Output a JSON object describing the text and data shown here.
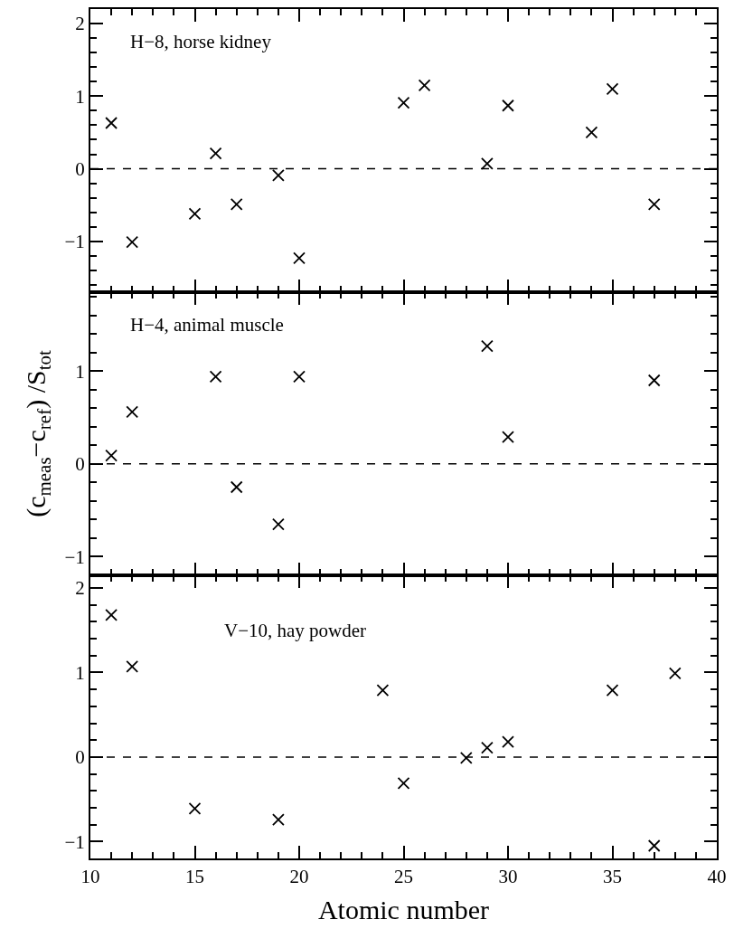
{
  "chart_data": [
    {
      "type": "scatter",
      "annotations": [
        "H−8, horse kidney"
      ],
      "x": [
        11,
        12,
        15,
        16,
        17,
        19,
        20,
        25,
        26,
        29,
        30,
        34,
        35,
        37
      ],
      "values": [
        0.63,
        -1.01,
        -0.62,
        0.21,
        -0.49,
        -0.09,
        -1.23,
        0.91,
        1.15,
        0.07,
        0.87,
        0.5,
        1.1,
        -0.49
      ],
      "xlim": [
        10,
        40
      ],
      "xticks": [
        10,
        15,
        20,
        25,
        30,
        35,
        40
      ],
      "ylim": [
        -1.7,
        2.2
      ],
      "yticks": [
        -1,
        0,
        1,
        2
      ],
      "tick_labels": "y",
      "marker": "cross",
      "color": "#000000",
      "ref_lines": [
        {
          "axis": "y",
          "value": 0,
          "line_style": "dashed"
        }
      ]
    },
    {
      "type": "scatter",
      "annotations": [
        "H−4, animal muscle"
      ],
      "ylabel": "(c$_{meas}$−c$_{ref}$) /S$_{tot}$",
      "x": [
        11,
        12,
        16,
        17,
        19,
        20,
        29,
        30,
        37
      ],
      "values": [
        0.09,
        0.56,
        0.94,
        -0.25,
        -0.65,
        0.94,
        1.27,
        0.29,
        0.9
      ],
      "xlim": [
        10,
        40
      ],
      "xticks": [
        10,
        15,
        20,
        25,
        30,
        35,
        40
      ],
      "ylim": [
        -1.2,
        1.85
      ],
      "yticks": [
        -1,
        0,
        1
      ],
      "tick_labels": "y",
      "marker": "cross",
      "color": "#000000",
      "ref_lines": [
        {
          "axis": "y",
          "value": 0,
          "line_style": "dashed"
        }
      ]
    },
    {
      "type": "scatter",
      "annotations": [
        "V−10, hay powder"
      ],
      "xlabel": "Atomic number",
      "x": [
        11,
        12,
        15,
        19,
        24,
        25,
        28,
        29,
        30,
        35,
        37,
        38
      ],
      "values": [
        1.68,
        1.07,
        -0.61,
        -0.74,
        0.79,
        -0.31,
        -0.01,
        0.11,
        0.18,
        0.79,
        -1.05,
        0.99
      ],
      "xlim": [
        10,
        40
      ],
      "xticks": [
        10,
        15,
        20,
        25,
        30,
        35,
        40
      ],
      "ylim": [
        -1.2,
        2.15
      ],
      "yticks": [
        -1,
        0,
        1,
        2
      ],
      "marker": "cross",
      "color": "#000000",
      "ref_lines": [
        {
          "axis": "y",
          "value": 0,
          "line_style": "dashed"
        }
      ]
    }
  ]
}
